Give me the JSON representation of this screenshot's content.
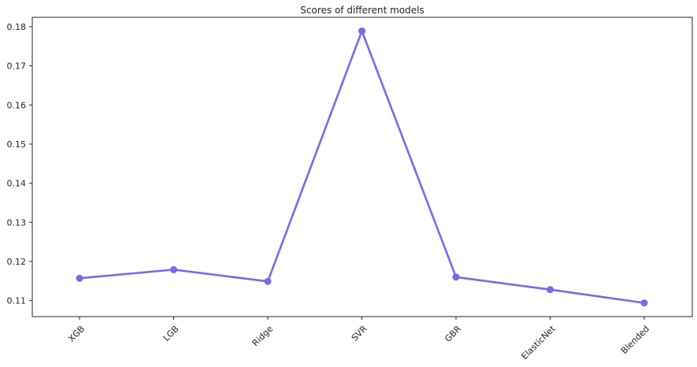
{
  "chart_data": {
    "type": "line",
    "title": "Scores of different models",
    "xlabel": "",
    "ylabel": "",
    "categories": [
      "XGB",
      "LGB",
      "Ridge",
      "SVR",
      "GBR",
      "ElasticNet",
      "Blended"
    ],
    "series": [
      {
        "values": [
          0.1157,
          0.1179,
          0.1149,
          0.1789,
          0.116,
          0.1128,
          0.1094
        ]
      }
    ],
    "yticks": [
      "0.11",
      "0.12",
      "0.13",
      "0.14",
      "0.15",
      "0.16",
      "0.17",
      "0.18"
    ],
    "ylim": [
      0.1059,
      0.1824
    ],
    "grid": false,
    "legend": "none",
    "colors": {
      "line": "#7b68ee",
      "axes": "#262626"
    }
  }
}
